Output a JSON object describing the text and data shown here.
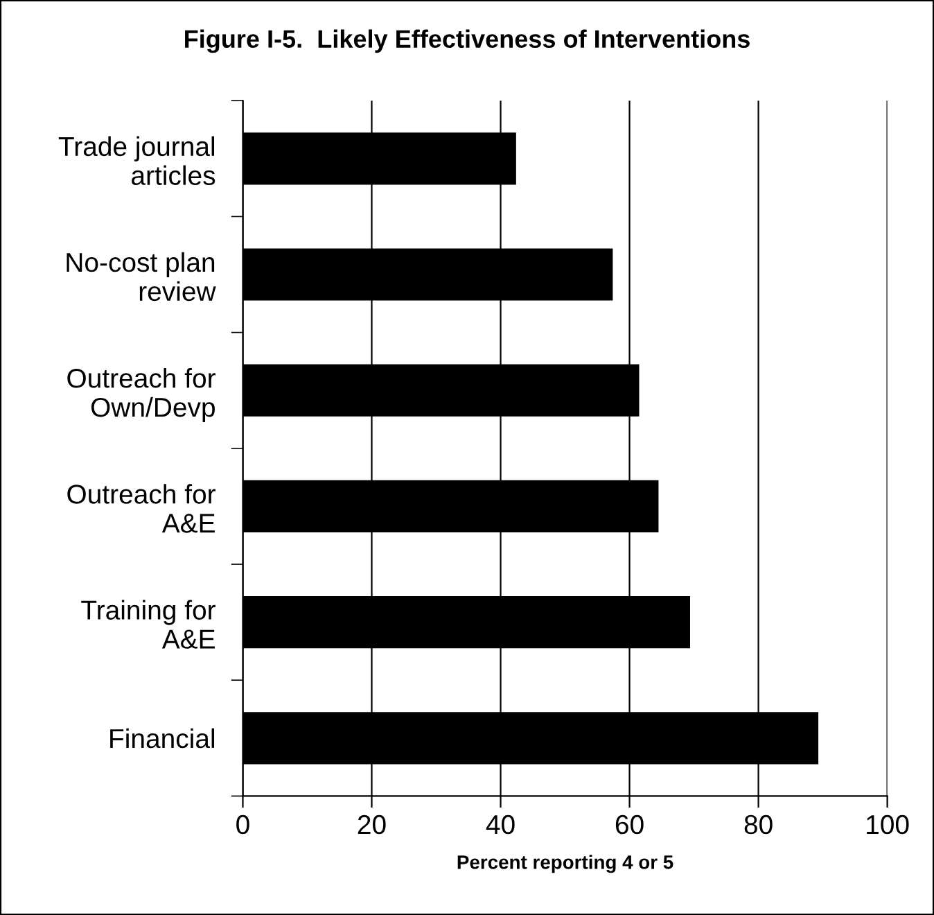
{
  "chart_data": {
    "type": "bar",
    "orientation": "horizontal",
    "title": "Figure I-5.  Likely Effectiveness of Interventions",
    "xlabel": "Percent reporting 4 or 5",
    "categories": [
      "Trade journal\narticles",
      "No-cost plan\nreview",
      "Outreach for\nOwn/Devp",
      "Outreach for\nA&E",
      "Training for\nA&E",
      "Financial"
    ],
    "values": [
      42.4,
      57.4,
      61.5,
      64.5,
      69.4,
      89.3
    ],
    "color": "#000000",
    "xlim": [
      0,
      100
    ],
    "xticks": [
      0,
      20,
      40,
      60,
      80,
      100
    ],
    "grid": "x",
    "legend": false
  }
}
